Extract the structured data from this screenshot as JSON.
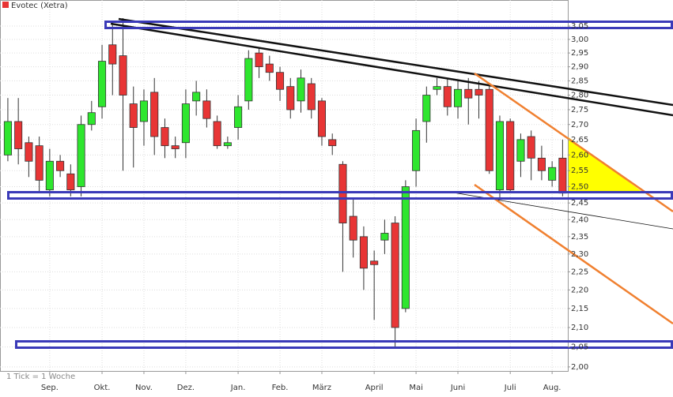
{
  "chart_data": {
    "type": "candlestick",
    "series_name": "Evotec (Xetra)",
    "note": "1 Tick = 1 Woche",
    "up_color": "#2ee62e",
    "down_color": "#e83535",
    "log_scale": true,
    "grid": true,
    "open": [
      2.6,
      2.71,
      2.64,
      2.63,
      2.49,
      2.58,
      2.54,
      2.5,
      2.7,
      2.76,
      2.98,
      2.94,
      2.77,
      2.71,
      2.81,
      2.69,
      2.63,
      2.64,
      2.78,
      2.78,
      2.71,
      2.63,
      2.69,
      2.78,
      2.95,
      2.91,
      2.88,
      2.83,
      2.78,
      2.84,
      2.78,
      2.65,
      2.57,
      2.41,
      2.35,
      2.28,
      2.34,
      2.39,
      2.15,
      2.55,
      2.71,
      2.82,
      2.83,
      2.76,
      2.82,
      2.82,
      2.82,
      2.49,
      2.71,
      2.58,
      2.66,
      2.59,
      2.52,
      2.59
    ],
    "high": [
      2.79,
      2.79,
      2.66,
      2.66,
      2.62,
      2.6,
      2.57,
      2.73,
      2.78,
      2.98,
      3.07,
      3.08,
      2.83,
      2.82,
      2.86,
      2.72,
      2.66,
      2.82,
      2.85,
      2.82,
      2.73,
      2.66,
      2.8,
      2.96,
      2.97,
      2.94,
      2.9,
      2.86,
      2.89,
      2.86,
      2.79,
      2.67,
      2.58,
      2.46,
      2.38,
      2.31,
      2.4,
      2.41,
      2.52,
      2.72,
      2.83,
      2.86,
      2.86,
      2.85,
      2.86,
      2.85,
      2.84,
      2.73,
      2.72,
      2.67,
      2.68,
      2.63,
      2.58,
      2.65
    ],
    "low": [
      2.58,
      2.57,
      2.53,
      2.48,
      2.47,
      2.53,
      2.47,
      2.47,
      2.68,
      2.72,
      2.8,
      2.55,
      2.56,
      2.63,
      2.6,
      2.59,
      2.59,
      2.59,
      2.73,
      2.69,
      2.62,
      2.62,
      2.65,
      2.75,
      2.86,
      2.85,
      2.78,
      2.72,
      2.74,
      2.72,
      2.63,
      2.6,
      2.25,
      2.29,
      2.2,
      2.12,
      2.3,
      2.05,
      2.14,
      2.5,
      2.64,
      2.8,
      2.73,
      2.72,
      2.7,
      2.72,
      2.54,
      2.46,
      2.48,
      2.53,
      2.52,
      2.52,
      2.5,
      2.47
    ],
    "close": [
      2.71,
      2.62,
      2.58,
      2.52,
      2.58,
      2.55,
      2.49,
      2.7,
      2.74,
      2.92,
      2.91,
      2.8,
      2.69,
      2.78,
      2.66,
      2.63,
      2.62,
      2.77,
      2.81,
      2.72,
      2.63,
      2.64,
      2.76,
      2.93,
      2.9,
      2.88,
      2.82,
      2.75,
      2.86,
      2.75,
      2.66,
      2.63,
      2.39,
      2.34,
      2.26,
      2.27,
      2.36,
      2.1,
      2.5,
      2.68,
      2.8,
      2.83,
      2.76,
      2.82,
      2.79,
      2.8,
      2.55,
      2.71,
      2.49,
      2.65,
      2.59,
      2.55,
      2.56,
      2.48
    ],
    "xlim": [
      -0.75,
      53.5
    ],
    "xticks": [
      {
        "value": 4,
        "label": "Sep."
      },
      {
        "value": 9,
        "label": "Okt."
      },
      {
        "value": 13,
        "label": "Nov."
      },
      {
        "value": 17,
        "label": "Dez."
      },
      {
        "value": 22,
        "label": "Jan."
      },
      {
        "value": 26,
        "label": "Feb."
      },
      {
        "value": 30,
        "label": "März"
      },
      {
        "value": 35,
        "label": "April"
      },
      {
        "value": 39,
        "label": "Mai"
      },
      {
        "value": 43,
        "label": "Juni"
      },
      {
        "value": 48,
        "label": "Juli"
      },
      {
        "value": 52,
        "label": "Aug."
      }
    ],
    "ylim": [
      1.99,
      3.15
    ],
    "yticks": [
      {
        "value": 2.0,
        "label": "2,00"
      },
      {
        "value": 2.05,
        "label": "2,05"
      },
      {
        "value": 2.1,
        "label": "2,10"
      },
      {
        "value": 2.15,
        "label": "2,15"
      },
      {
        "value": 2.2,
        "label": "2,20"
      },
      {
        "value": 2.25,
        "label": "2,25"
      },
      {
        "value": 2.3,
        "label": "2,30"
      },
      {
        "value": 2.35,
        "label": "2,35"
      },
      {
        "value": 2.4,
        "label": "2,40"
      },
      {
        "value": 2.45,
        "label": "2,45"
      },
      {
        "value": 2.5,
        "label": "2,50"
      },
      {
        "value": 2.55,
        "label": "2,55"
      },
      {
        "value": 2.6,
        "label": "2,60"
      },
      {
        "value": 2.65,
        "label": "2,65"
      },
      {
        "value": 2.7,
        "label": "2,70"
      },
      {
        "value": 2.75,
        "label": "2,75"
      },
      {
        "value": 2.8,
        "label": "2,80"
      },
      {
        "value": 2.85,
        "label": "2,85"
      },
      {
        "value": 2.9,
        "label": "2,90"
      },
      {
        "value": 2.95,
        "label": "2,95"
      },
      {
        "value": 3.0,
        "label": "3,00"
      },
      {
        "value": 3.05,
        "label": "3,05"
      }
    ]
  }
}
